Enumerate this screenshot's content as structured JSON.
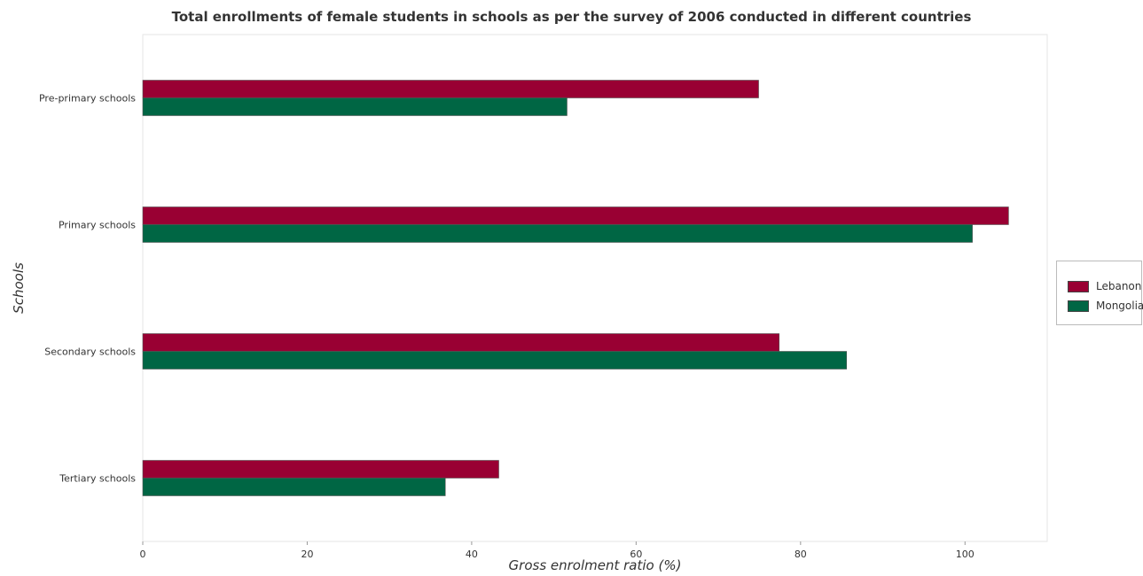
{
  "chart_data": {
    "type": "bar",
    "orientation": "horizontal",
    "title": "Total enrollments of female students in schools as per the survey of 2006 conducted in different countries",
    "xlabel": "Gross enrolment ratio (%)",
    "ylabel": "Schools",
    "categories": [
      "Pre-primary schools",
      "Primary schools",
      "Secondary schools",
      "Tertiary schools"
    ],
    "series": [
      {
        "name": "Lebanon",
        "color": "#990033",
        "values": [
          74.9,
          105.3,
          77.4,
          43.3
        ]
      },
      {
        "name": "Mongolia",
        "color": "#006644",
        "values": [
          51.6,
          100.9,
          85.6,
          36.8
        ]
      }
    ],
    "xlim": [
      0,
      110
    ],
    "xticks": [
      0,
      20,
      40,
      60,
      80,
      100
    ],
    "xtick_labels": [
      "0",
      "20",
      "40",
      "60",
      "80",
      "100"
    ],
    "grid": false,
    "legend_position": "right"
  }
}
